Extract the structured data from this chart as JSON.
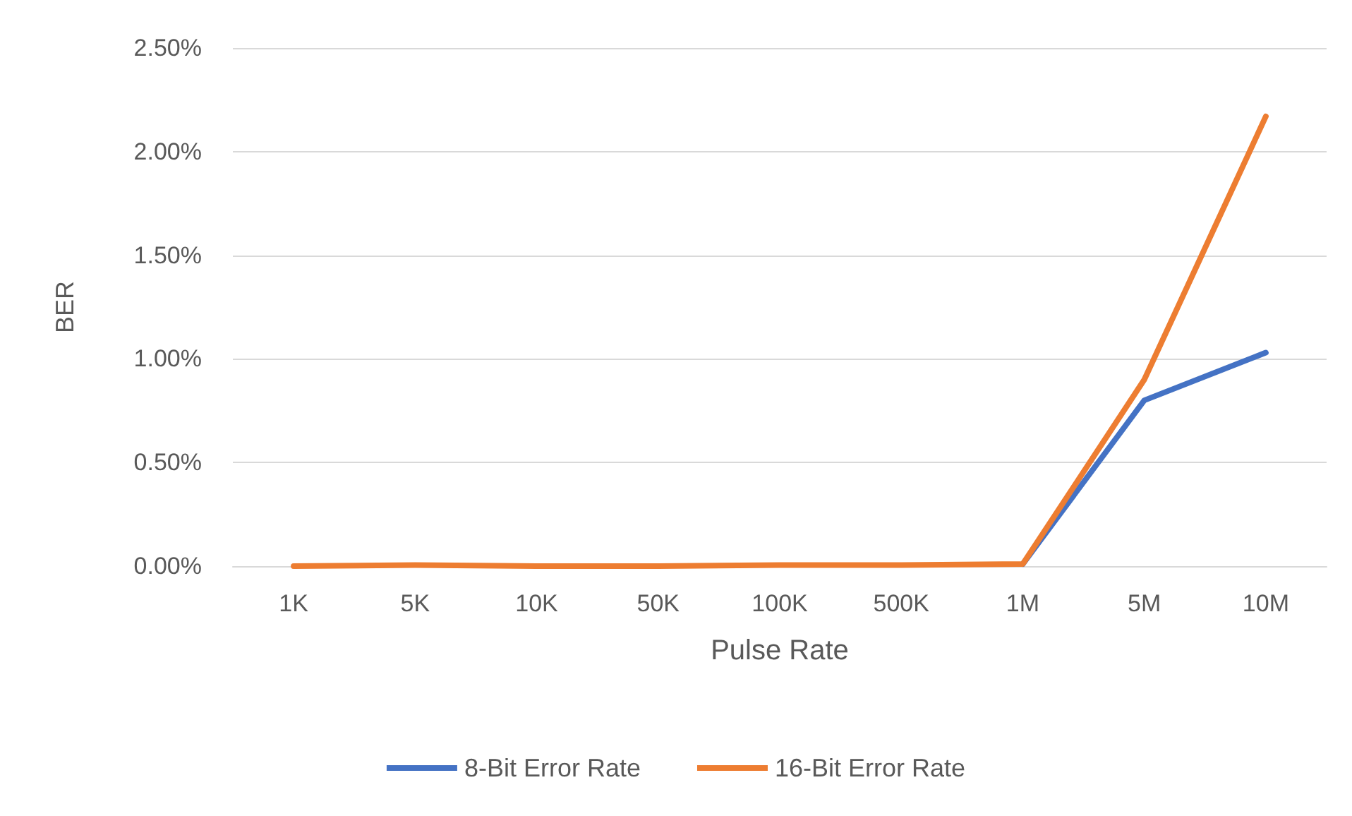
{
  "chart_data": {
    "type": "line",
    "xlabel": "Pulse Rate",
    "ylabel": "BER",
    "categories": [
      "1K",
      "5K",
      "10K",
      "50K",
      "100K",
      "500K",
      "1M",
      "5M",
      "10M"
    ],
    "series": [
      {
        "name": "8-Bit Error Rate",
        "color": "#4472c4",
        "values": [
          null,
          null,
          null,
          null,
          null,
          null,
          0.01,
          0.8,
          1.03
        ]
      },
      {
        "name": "16-Bit Error Rate",
        "color": "#ed7d31",
        "values": [
          0,
          0.005,
          0,
          0,
          0.005,
          0.005,
          0.01,
          0.9,
          2.17
        ]
      }
    ],
    "ylim": [
      0,
      2.5
    ],
    "yticks": [
      {
        "value": 0,
        "label": "0.00%"
      },
      {
        "value": 0.5,
        "label": "0.50%"
      },
      {
        "value": 1,
        "label": "1.00%"
      },
      {
        "value": 1.5,
        "label": "1.50%"
      },
      {
        "value": 2,
        "label": "2.00%"
      },
      {
        "value": 2.5,
        "label": "2.50%"
      }
    ],
    "grid": "y",
    "legend": "bottom",
    "marker": "none",
    "line_style": "solid"
  }
}
